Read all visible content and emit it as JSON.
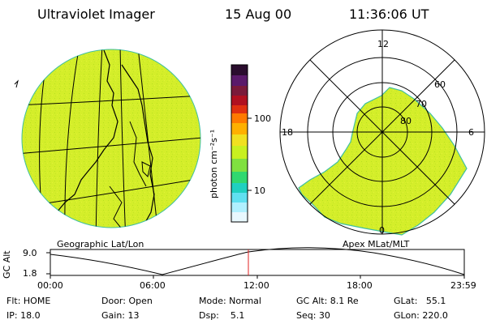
{
  "header": {
    "instrument": "Ultraviolet Imager",
    "date": "15 Aug 00",
    "time": "11:36:06 UT"
  },
  "colorbar": {
    "unit_label": "photon cm⁻²s⁻¹",
    "ticks": [
      "100",
      "10"
    ],
    "colors": [
      "#2a0d2e",
      "#5a1a6a",
      "#7a1a3a",
      "#b01020",
      "#e03010",
      "#ff7a00",
      "#ffb000",
      "#f0e020",
      "#c8f020",
      "#80e040",
      "#30d870",
      "#20d0c0",
      "#60e0f0",
      "#b0f0ff",
      "#e8f8ff"
    ]
  },
  "panels": {
    "left_label": "Geographic Lat/Lon",
    "right_label": "Apex MLat/MLT"
  },
  "polar": {
    "mlt_labels": [
      "12",
      "18",
      "6",
      "0"
    ],
    "lat_labels": [
      "60",
      "70",
      "80"
    ]
  },
  "altitude_plot": {
    "ylabel": "GC Alt",
    "y_ticks": [
      "9.0",
      "1.8"
    ],
    "x_ticks": [
      "00:00",
      "06:00",
      "12:00",
      "18:00",
      "23:59"
    ]
  },
  "info": {
    "flt": "Flt: HOME",
    "ip": "IP: 18.0",
    "door": "Door: Open",
    "gain": "Gain: 13",
    "mode": "Mode: Normal",
    "dsp": "Dsp:    5.1",
    "gcalt": "GC Alt: 8.1 Re",
    "seq": "Seq: 30",
    "glat": "GLat:   55.1",
    "glon": "GLon: 220.0"
  }
}
